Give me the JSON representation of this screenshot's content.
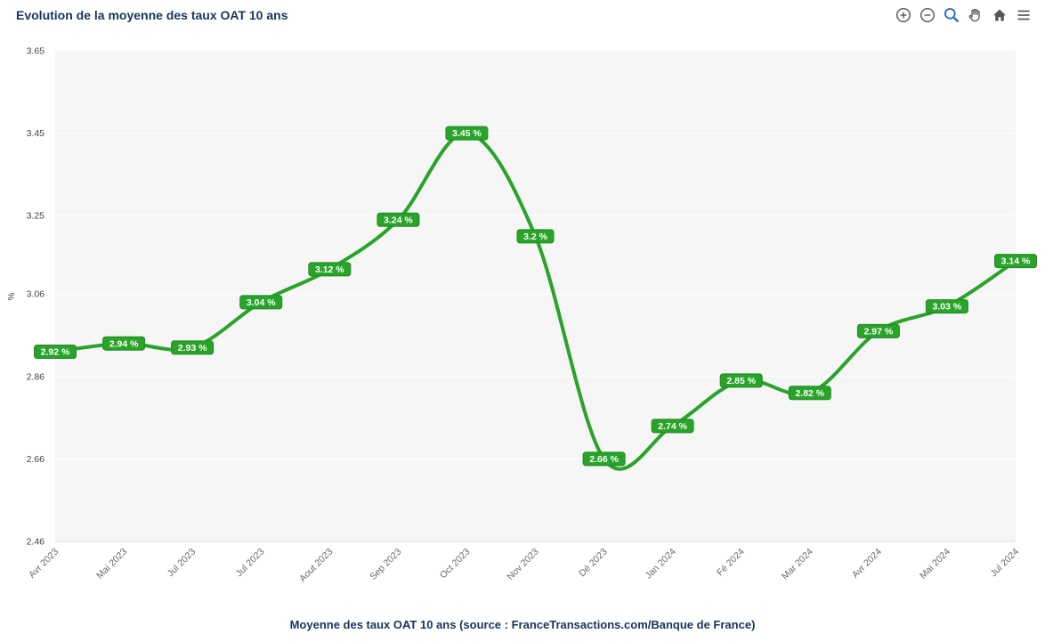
{
  "header": {
    "title": "Evolution de la moyenne des taux OAT 10 ans",
    "toolbar_icons": [
      "zoom-in",
      "zoom-out",
      "zoom-select-active",
      "pan-hand",
      "home-reset",
      "menu"
    ]
  },
  "chart_data": {
    "type": "line",
    "title": "Evolution de la moyenne des taux OAT 10 ans",
    "categories": [
      "Avr 2023",
      "Mai 2023",
      "Jul 2023",
      "Jul 2023",
      "Aout 2023",
      "Sep 2023",
      "Oct 2023",
      "Nov 2023",
      "Dé 2023",
      "Jan 2024",
      "Fé 2024",
      "Mar 2024",
      "Avr 2024",
      "Mai 2024",
      "Jul 2024"
    ],
    "values": [
      2.92,
      2.94,
      2.93,
      3.04,
      3.12,
      3.24,
      3.45,
      3.2,
      2.66,
      2.74,
      2.85,
      2.82,
      2.97,
      3.03,
      3.14
    ],
    "labels": [
      "2.92 %",
      "2.94 %",
      "2.93 %",
      "3.04 %",
      "3.12 %",
      "3.24 %",
      "3.45 %",
      "3.2 %",
      "2.66 %",
      "2.74 %",
      "2.85 %",
      "2.82 %",
      "2.97 %",
      "3.03 %",
      "3.14 %"
    ],
    "xlabel": "",
    "ylabel": "%",
    "y_ticks": [
      "3.65",
      "3.45",
      "3.25",
      "3.06",
      "2.86",
      "2.66",
      "2.46"
    ],
    "ylim": [
      2.46,
      3.65
    ],
    "grid": true,
    "legend": "none",
    "line_color": "#29a329",
    "label_bg": "#29a329",
    "label_border": "#1f8c22",
    "label_text": "#ffffff",
    "plot_bg": "#f6f6f6",
    "grid_color": "#ffffff",
    "axis_line_color": "#d9d9d9",
    "axis_text": "#444444",
    "xaxis_text": "#6a6a6a"
  },
  "footer": {
    "caption": "Moyenne des taux OAT 10 ans (source : FranceTransactions.com/Banque de France)"
  }
}
